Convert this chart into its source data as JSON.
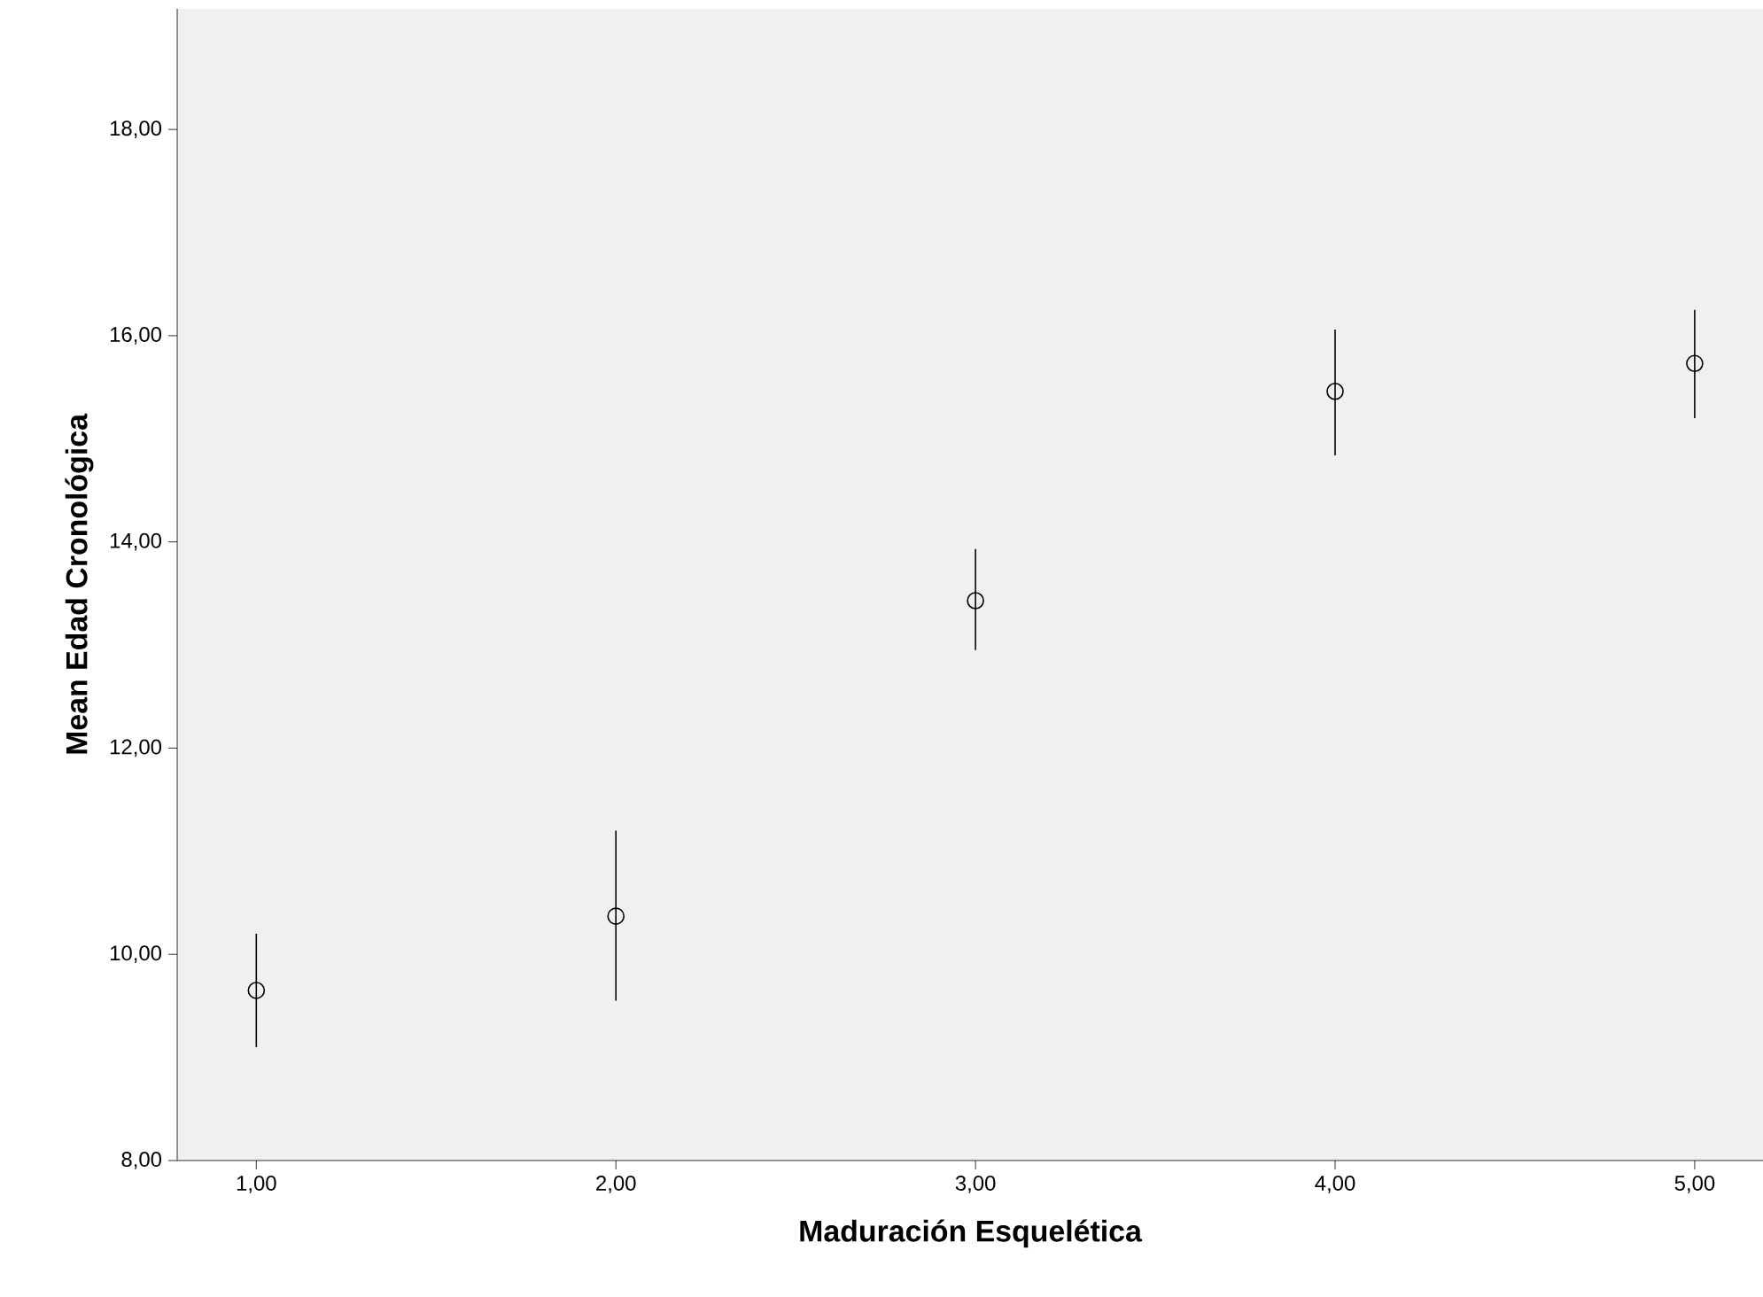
{
  "chart_data": {
    "type": "scatter",
    "xlabel": "Maduración Esquelética",
    "ylabel": "Mean Edad Cronológica",
    "x": [
      1,
      2,
      3,
      4,
      5
    ],
    "values": [
      9.65,
      10.37,
      13.43,
      15.46,
      15.73
    ],
    "errors": [
      [
        9.1,
        10.2
      ],
      [
        9.55,
        11.2
      ],
      [
        12.95,
        13.93
      ],
      [
        14.84,
        16.06
      ],
      [
        15.2,
        16.25
      ]
    ],
    "color": "#000000",
    "marker": "circle",
    "xlim": [
      0.78,
      5.19
    ],
    "ylim": [
      8,
      19.17
    ],
    "xticks": [
      {
        "value": 1,
        "label": "1,00"
      },
      {
        "value": 2,
        "label": "2,00"
      },
      {
        "value": 3,
        "label": "3,00"
      },
      {
        "value": 4,
        "label": "4,00"
      },
      {
        "value": 5,
        "label": "5,00"
      }
    ],
    "yticks": [
      {
        "value": 8,
        "label": "8,00"
      },
      {
        "value": 10,
        "label": "10,00"
      },
      {
        "value": 12,
        "label": "12,00"
      },
      {
        "value": 14,
        "label": "14,00"
      },
      {
        "value": 16,
        "label": "16,00"
      },
      {
        "value": 18,
        "label": "18,00"
      }
    ]
  }
}
